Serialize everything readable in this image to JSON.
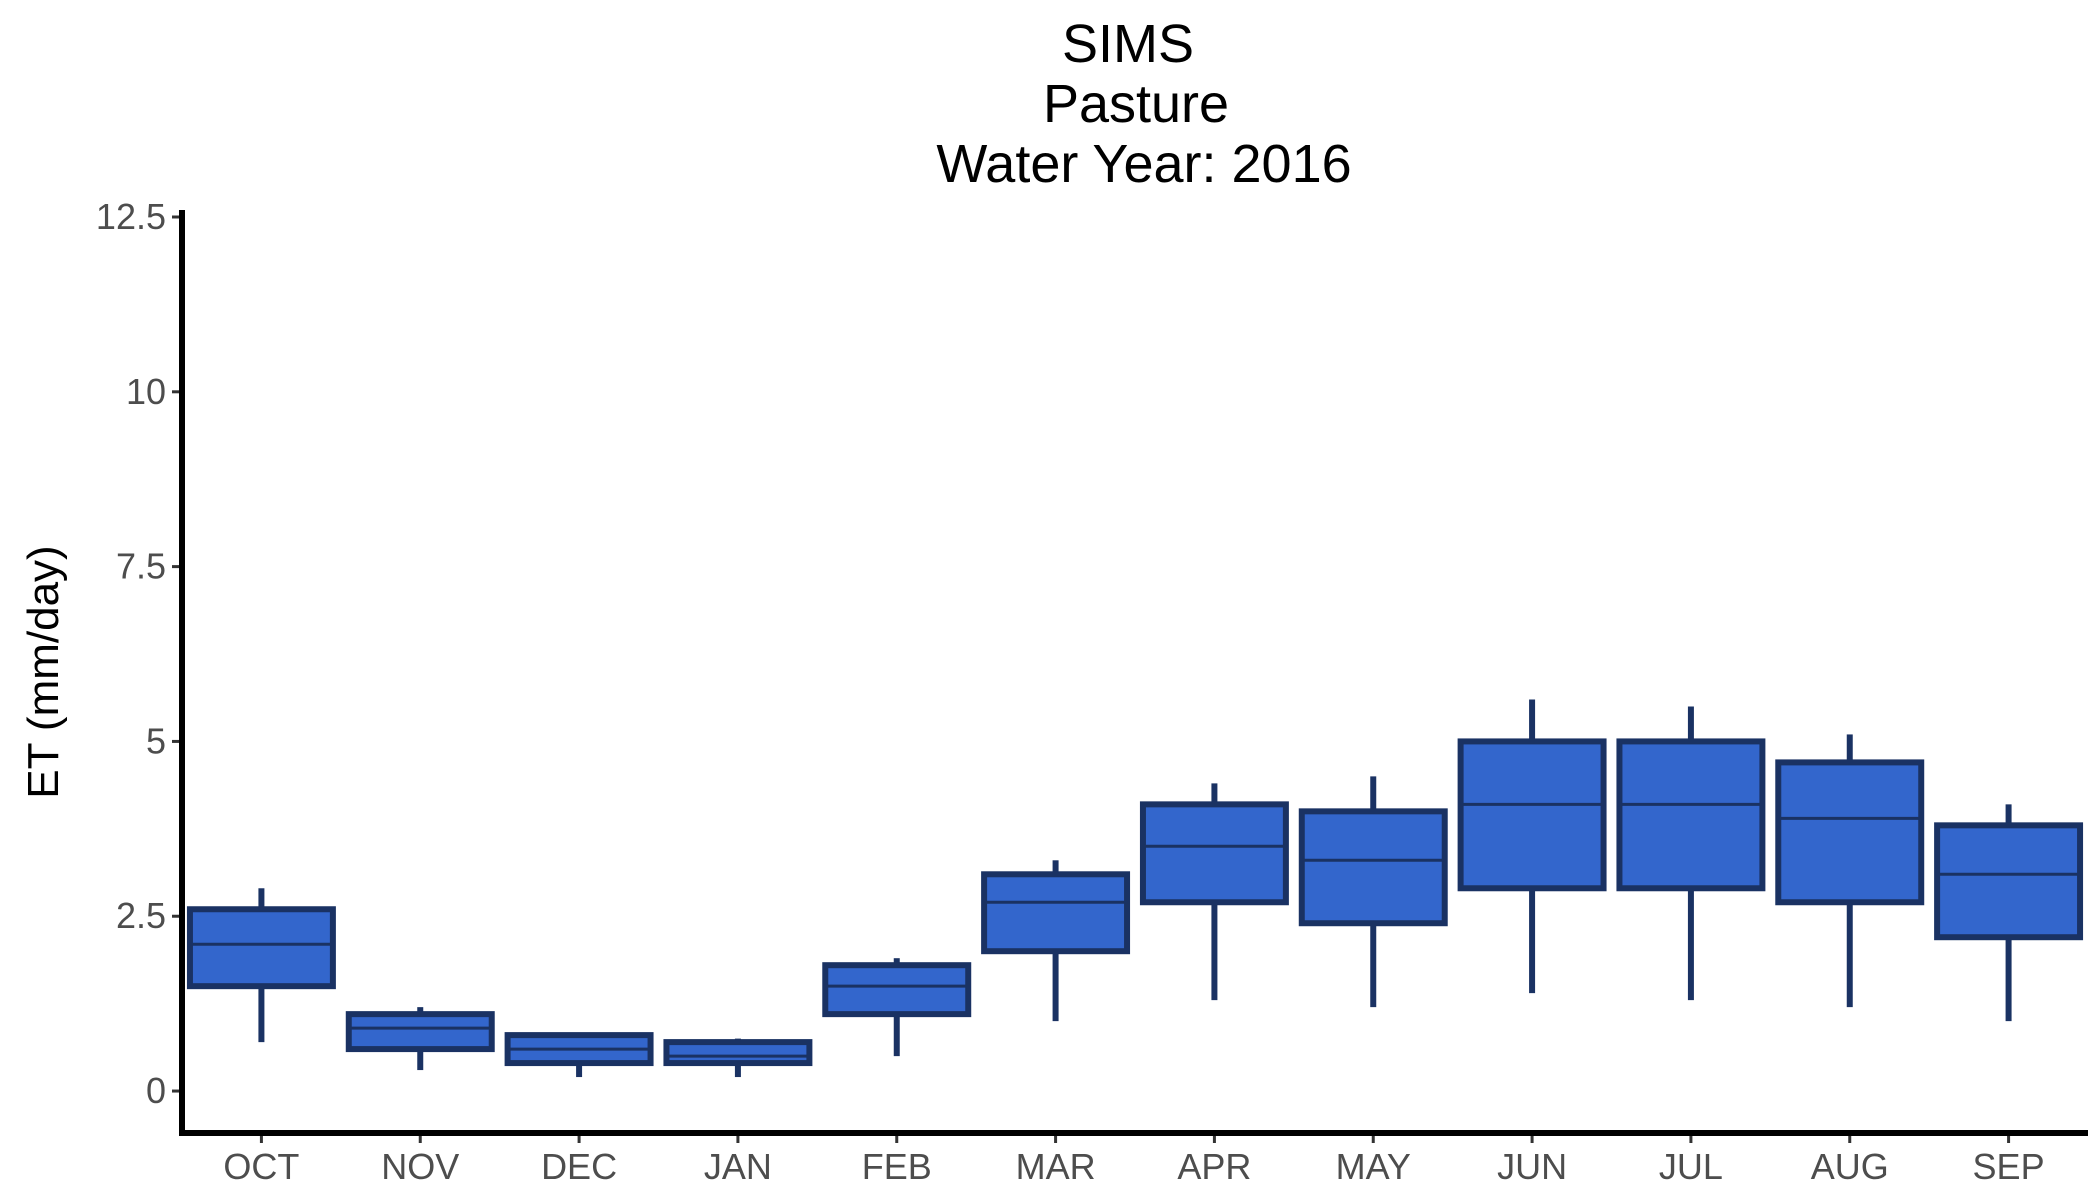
{
  "chart_data": {
    "type": "boxplot",
    "title": [
      "SIMS",
      "Pasture",
      "Water Year: 2016"
    ],
    "xlabel": "",
    "ylabel": "ET (mm/day)",
    "ylim": [
      -0.6,
      12.6
    ],
    "yticks": [
      {
        "value": 0,
        "label": "0"
      },
      {
        "value": 2.5,
        "label": "2.5"
      },
      {
        "value": 5,
        "label": "5"
      },
      {
        "value": 7.5,
        "label": "7.5"
      },
      {
        "value": 10,
        "label": "10"
      },
      {
        "value": 12.5,
        "label": "12.5"
      }
    ],
    "grid": false,
    "categories": [
      "OCT",
      "NOV",
      "DEC",
      "JAN",
      "FEB",
      "MAR",
      "APR",
      "MAY",
      "JUN",
      "JUL",
      "AUG",
      "SEP"
    ],
    "boxes": [
      {
        "category": "OCT",
        "min": 0.7,
        "q1": 1.5,
        "median": 2.1,
        "q3": 2.6,
        "max": 2.9
      },
      {
        "category": "NOV",
        "min": 0.3,
        "q1": 0.6,
        "median": 0.9,
        "q3": 1.1,
        "max": 1.2
      },
      {
        "category": "DEC",
        "min": 0.2,
        "q1": 0.4,
        "median": 0.6,
        "q3": 0.8,
        "max": 0.8
      },
      {
        "category": "JAN",
        "min": 0.2,
        "q1": 0.4,
        "median": 0.5,
        "q3": 0.7,
        "max": 0.75
      },
      {
        "category": "FEB",
        "min": 0.5,
        "q1": 1.1,
        "median": 1.5,
        "q3": 1.8,
        "max": 1.9
      },
      {
        "category": "MAR",
        "min": 1.0,
        "q1": 2.0,
        "median": 2.7,
        "q3": 3.1,
        "max": 3.3
      },
      {
        "category": "APR",
        "min": 1.3,
        "q1": 2.7,
        "median": 3.5,
        "q3": 4.1,
        "max": 4.4
      },
      {
        "category": "MAY",
        "min": 1.2,
        "q1": 2.4,
        "median": 3.3,
        "q3": 4.0,
        "max": 4.5
      },
      {
        "category": "JUN",
        "min": 1.4,
        "q1": 2.9,
        "median": 4.1,
        "q3": 5.0,
        "max": 5.6
      },
      {
        "category": "JUL",
        "min": 1.3,
        "q1": 2.9,
        "median": 4.1,
        "q3": 5.0,
        "max": 5.5
      },
      {
        "category": "AUG",
        "min": 1.2,
        "q1": 2.7,
        "median": 3.9,
        "q3": 4.7,
        "max": 5.1
      },
      {
        "category": "SEP",
        "min": 1.0,
        "q1": 2.2,
        "median": 3.1,
        "q3": 3.8,
        "max": 4.1
      }
    ],
    "colors": {
      "box_fill": "#3366cc",
      "box_outline": "#1a3263",
      "axis": "#000000",
      "tick_text": "#4d4d4d",
      "title_text": "#000000"
    }
  }
}
